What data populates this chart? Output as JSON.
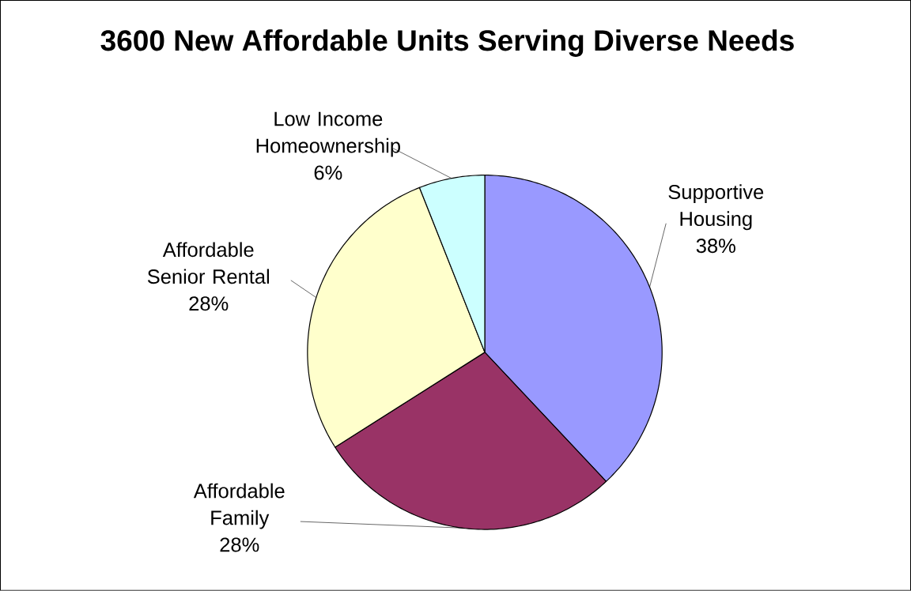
{
  "chart_data": {
    "type": "pie",
    "title": "3600 New Affordable Units Serving Diverse Needs",
    "categories": [
      "Supportive Housing",
      "Affordable Family",
      "Affordable Senior Rental",
      "Low Income Homeownership"
    ],
    "values": [
      38,
      28,
      28,
      6
    ],
    "value_labels": [
      "38%",
      "28%",
      "28%",
      "6%"
    ],
    "colors": [
      "#9999ff",
      "#993366",
      "#ffffcc",
      "#ccffff"
    ],
    "legend": false
  }
}
